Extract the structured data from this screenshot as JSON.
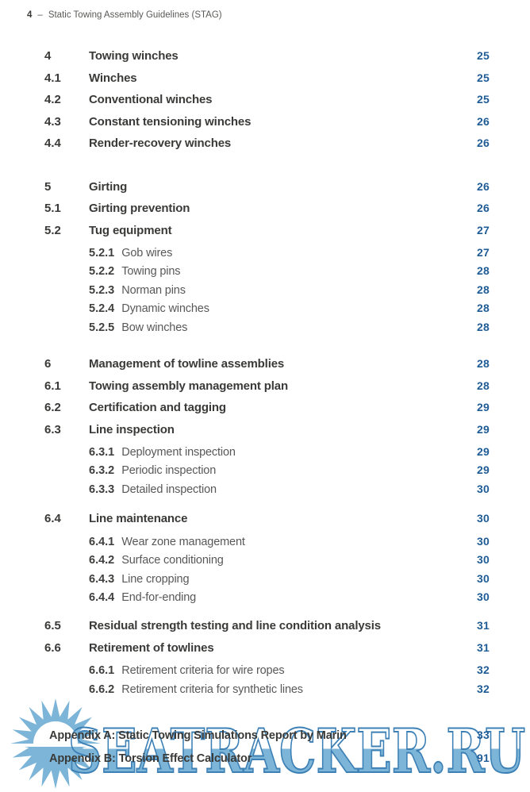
{
  "page": {
    "header": {
      "number": "4",
      "separator": "–",
      "title": "Static Towing Assembly Guidelines (STAG)"
    }
  },
  "colors": {
    "page_number_blue": "#1f5c96",
    "text_dark": "#3a3a38",
    "text_gray": "#58585a",
    "watermark_fill_blue": "#7cb5d8",
    "watermark_outline_blue": "#3d80b5"
  },
  "toc": {
    "groups": [
      {
        "entries": [
          {
            "level": 1,
            "num": "4",
            "title": "Towing winches",
            "page": "25"
          },
          {
            "level": 2,
            "num": "4.1",
            "title": "Winches",
            "page": "25"
          },
          {
            "level": 2,
            "num": "4.2",
            "title": "Conventional winches",
            "page": "25"
          },
          {
            "level": 2,
            "num": "4.3",
            "title": "Constant tensioning winches",
            "page": "26"
          },
          {
            "level": 2,
            "num": "4.4",
            "title": "Render-recovery winches",
            "page": "26"
          }
        ]
      },
      {
        "entries": [
          {
            "level": 1,
            "num": "5",
            "title": "Girting",
            "page": "26"
          },
          {
            "level": 2,
            "num": "5.1",
            "title": "Girting prevention",
            "page": "26"
          },
          {
            "level": 2,
            "num": "5.2",
            "title": "Tug equipment",
            "page": "27"
          },
          {
            "level": 3,
            "num": "5.2.1",
            "title": "Gob wires",
            "page": "27"
          },
          {
            "level": 3,
            "num": "5.2.2",
            "title": "Towing pins",
            "page": "28"
          },
          {
            "level": 3,
            "num": "5.2.3",
            "title": "Norman pins",
            "page": "28"
          },
          {
            "level": 3,
            "num": "5.2.4",
            "title": "Dynamic winches",
            "page": "28"
          },
          {
            "level": 3,
            "num": "5.2.5",
            "title": "Bow winches",
            "page": "28"
          }
        ]
      },
      {
        "entries": [
          {
            "level": 1,
            "num": "6",
            "title": "Management of towline assemblies",
            "page": "28"
          },
          {
            "level": 2,
            "num": "6.1",
            "title": "Towing assembly management plan",
            "page": "28"
          },
          {
            "level": 2,
            "num": "6.2",
            "title": "Certification and tagging",
            "page": "29"
          },
          {
            "level": 2,
            "num": "6.3",
            "title": "Line inspection",
            "page": "29"
          },
          {
            "level": 3,
            "num": "6.3.1",
            "title": "Deployment inspection",
            "page": "29"
          },
          {
            "level": 3,
            "num": "6.3.2",
            "title": "Periodic inspection",
            "page": "29"
          },
          {
            "level": 3,
            "num": "6.3.3",
            "title": "Detailed inspection",
            "page": "30"
          }
        ]
      },
      {
        "entries": [
          {
            "level": 2,
            "num": "6.4",
            "title": "Line maintenance",
            "page": "30"
          },
          {
            "level": 3,
            "num": "6.4.1",
            "title": "Wear zone management",
            "page": "30"
          },
          {
            "level": 3,
            "num": "6.4.2",
            "title": "Surface conditioning",
            "page": "30"
          },
          {
            "level": 3,
            "num": "6.4.3",
            "title": "Line cropping",
            "page": "30"
          },
          {
            "level": 3,
            "num": "6.4.4",
            "title": "End-for-ending",
            "page": "30"
          }
        ]
      },
      {
        "entries": [
          {
            "level": 2,
            "num": "6.5",
            "title": "Residual strength testing and line condition analysis",
            "page": "31"
          },
          {
            "level": 2,
            "num": "6.6",
            "title": "Retirement of towlines",
            "page": "31"
          },
          {
            "level": 3,
            "num": "6.6.1",
            "title": "Retirement criteria for wire ropes",
            "page": "32"
          },
          {
            "level": 3,
            "num": "6.6.2",
            "title": "Retirement criteria for synthetic lines",
            "page": "32"
          }
        ]
      },
      {
        "entries": [
          {
            "level": "appendix",
            "num": "",
            "title": "Appendix A: Static Towing Simulations Report by Marin",
            "page": "33"
          },
          {
            "level": "appendix",
            "num": "",
            "title": "Appendix B: Torsion Effect Calculator",
            "page": "91"
          }
        ]
      }
    ]
  },
  "watermark": {
    "text": "SEATRACKER.RU",
    "icon": "sun-logo"
  }
}
